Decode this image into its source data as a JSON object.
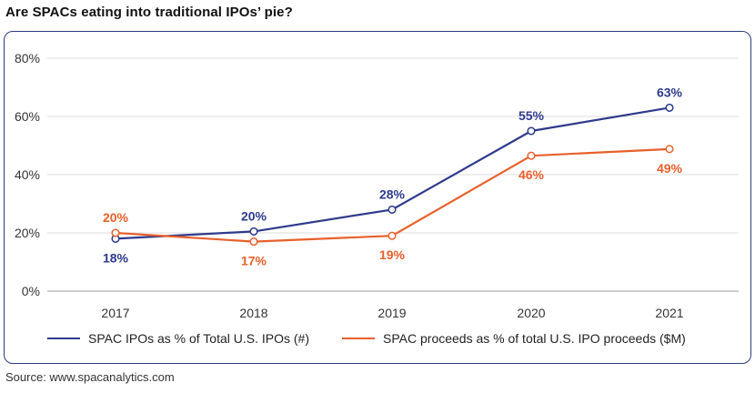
{
  "title": "Are SPACs eating into traditional IPOs’ pie?",
  "source": "Source: www.spacanalytics.com",
  "chart_data": {
    "type": "line",
    "title": "Are SPACs eating into traditional IPOs’ pie?",
    "categories": [
      "2017",
      "2018",
      "2019",
      "2020",
      "2021"
    ],
    "y_ticks": [
      "0%",
      "20%",
      "40%",
      "60%",
      "80%"
    ],
    "ylim": [
      0,
      80
    ],
    "grid": true,
    "legend_position": "bottom",
    "series": [
      {
        "name": "SPAC IPOs as % of Total U.S. IPOs (#)",
        "values": [
          18,
          20.5,
          28,
          55,
          63
        ],
        "labels": [
          "18%",
          "20%",
          "28%",
          "55%",
          "63%"
        ],
        "label_position": [
          "below",
          "above",
          "above",
          "above",
          "above"
        ],
        "color": "#2e3a8c"
      },
      {
        "name": "SPAC proceeds as % of total U.S. IPO proceeds ($M)",
        "values": [
          20,
          17,
          19,
          46.5,
          48.8
        ],
        "labels": [
          "20%",
          "17%",
          "19%",
          "46%",
          "49%"
        ],
        "label_position": [
          "above",
          "below",
          "below",
          "below",
          "below"
        ],
        "color": "#e8602c"
      }
    ]
  }
}
